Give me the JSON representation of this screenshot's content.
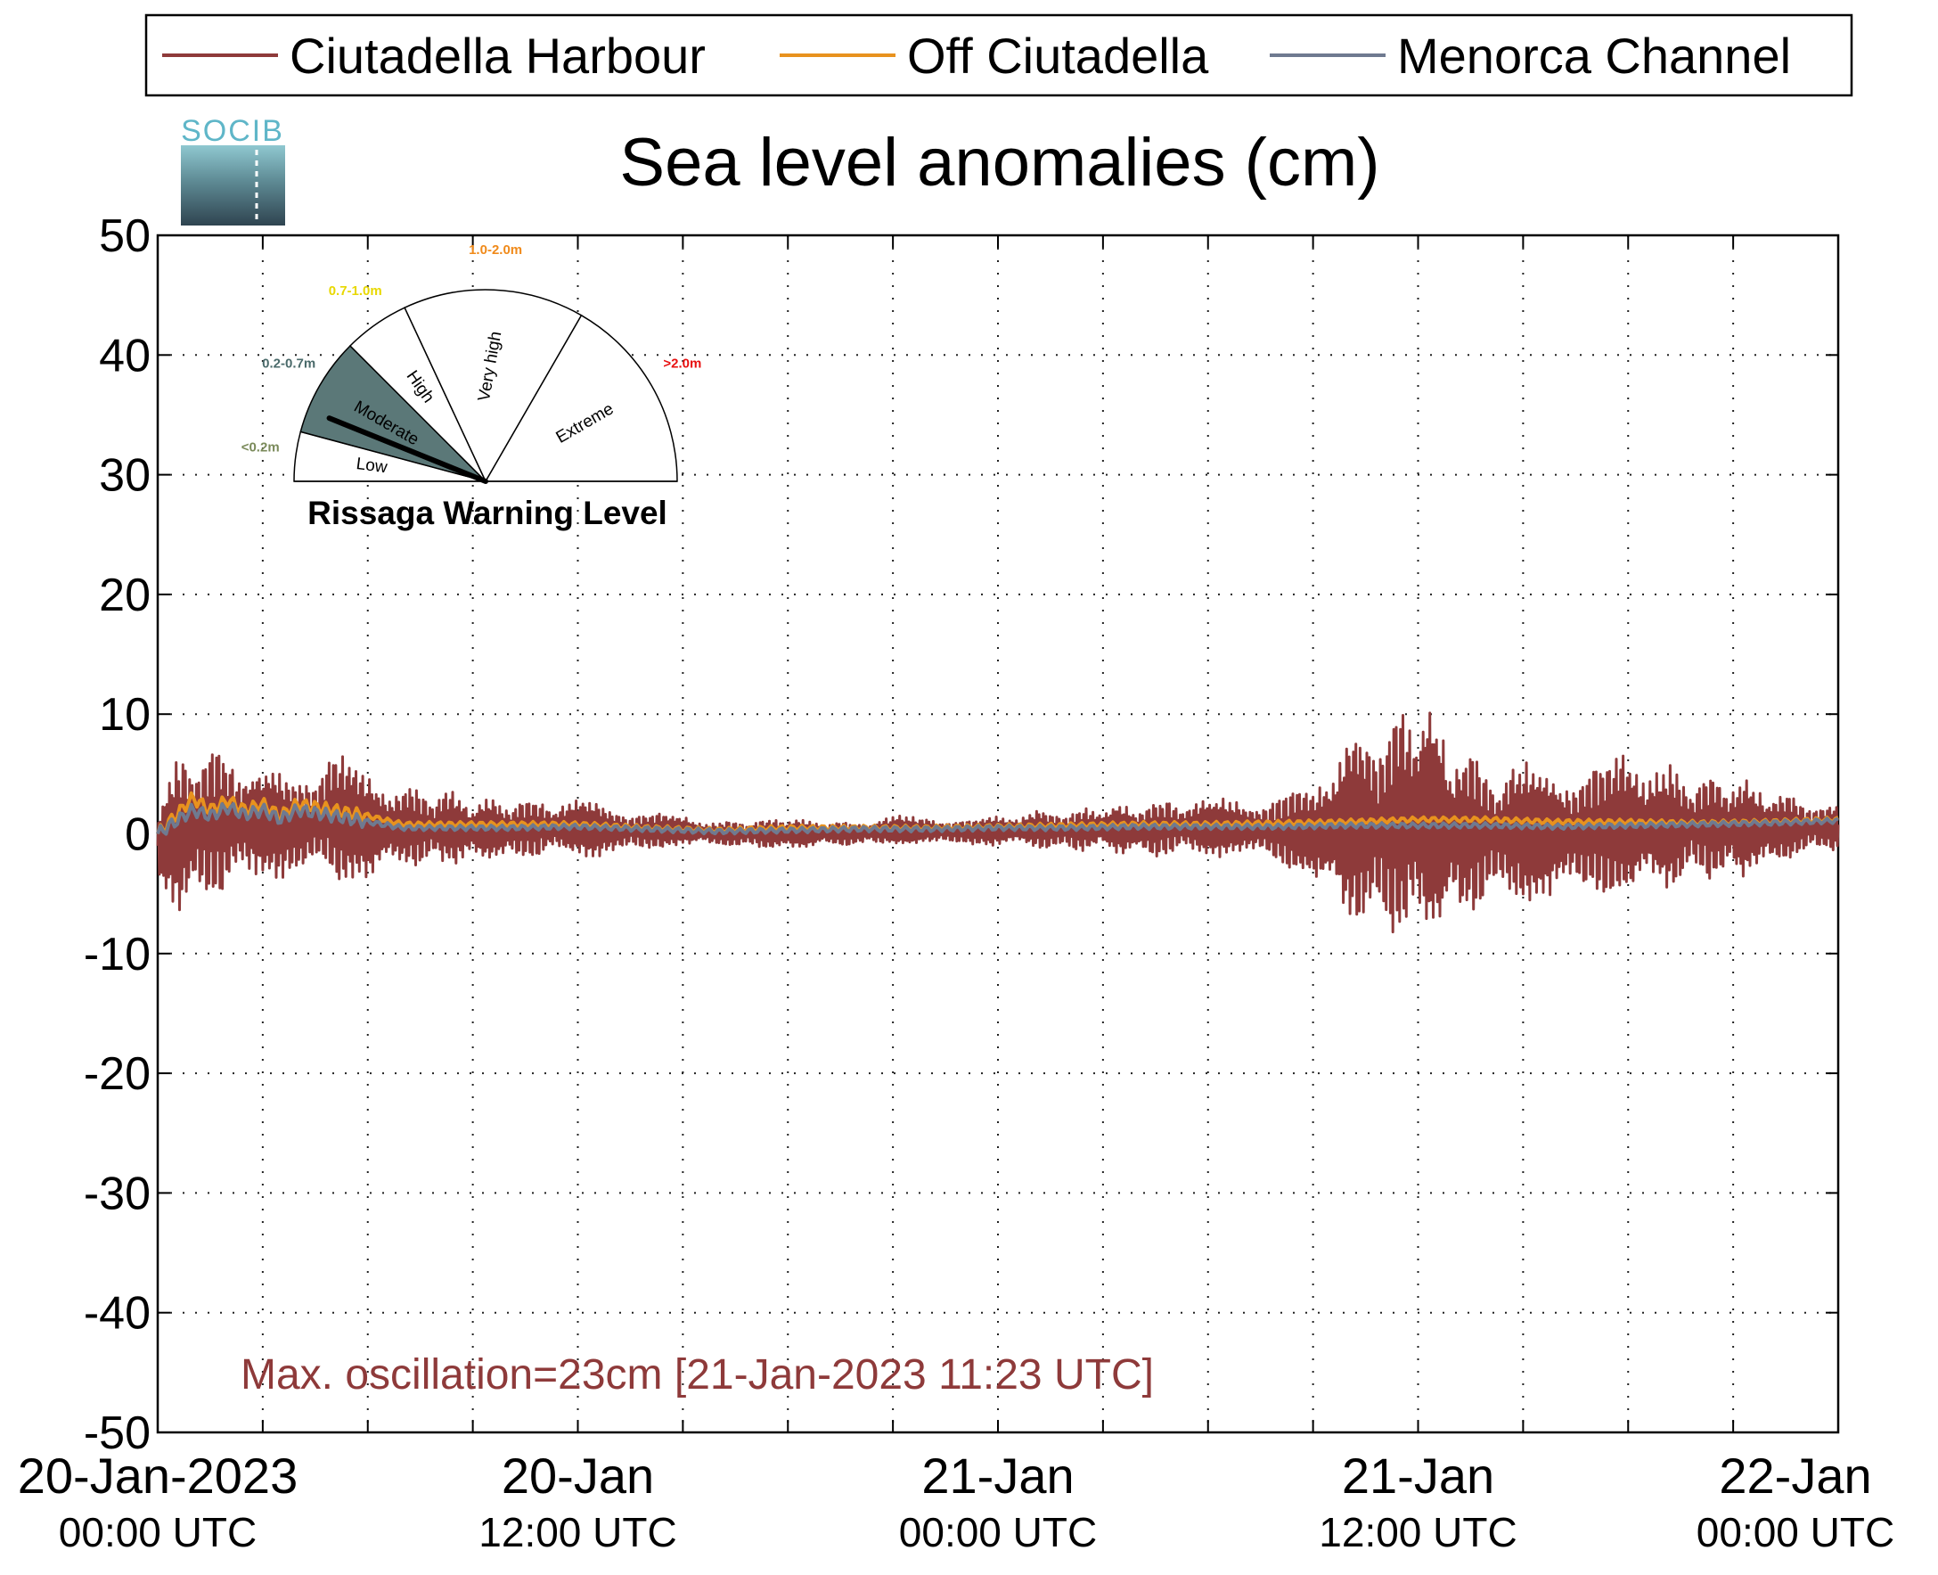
{
  "chart_data": {
    "type": "line",
    "title": "Sea level anomalies (cm)",
    "ylim": [
      -50,
      50
    ],
    "yticks": [
      50,
      40,
      30,
      20,
      10,
      0,
      -10,
      -20,
      -30,
      -40,
      -50
    ],
    "xlim": [
      "2023-01-20 00:00",
      "2023-01-22 00:00"
    ],
    "x_tick_labels": [
      {
        "date": "2023-01-20 00:00",
        "line1": "20-Jan-2023",
        "line2": "00:00 UTC"
      },
      {
        "date": "2023-01-20 12:00",
        "line1": "20-Jan",
        "line2": "12:00 UTC"
      },
      {
        "date": "2023-01-21 00:00",
        "line1": "21-Jan",
        "line2": "00:00 UTC"
      },
      {
        "date": "2023-01-21 12:00",
        "line1": "21-Jan",
        "line2": "12:00 UTC"
      },
      {
        "date": "2023-01-22 00:00",
        "line1": "22-Jan",
        "line2": "00:00 UTC"
      }
    ],
    "grid": true,
    "legend_position": "top",
    "series": [
      {
        "name": "Ciutadella Harbour",
        "color": "#8e3a3a",
        "data_hours": [
          0,
          1,
          2,
          3,
          4,
          5,
          6,
          7,
          8,
          9,
          10,
          11,
          12,
          13,
          14,
          15,
          16,
          17,
          18,
          19,
          20,
          21,
          22,
          23,
          24,
          25,
          26,
          27,
          28,
          29,
          30,
          31,
          32,
          33,
          34,
          35,
          36,
          37,
          38,
          39,
          40,
          41,
          42,
          43,
          44,
          45,
          46,
          47,
          48
        ],
        "upper_envelope_cm": [
          4,
          8,
          7,
          6,
          5,
          8,
          5,
          4,
          4,
          3,
          3,
          3,
          3,
          2.5,
          2,
          1.5,
          1,
          1.2,
          1.5,
          1,
          1,
          1.5,
          1.5,
          1.2,
          1.5,
          2,
          2,
          2.5,
          2.5,
          3,
          3,
          3,
          3.5,
          4,
          9,
          10,
          12.5,
          8,
          6,
          6.5,
          6,
          6.5,
          7,
          6,
          5,
          5,
          4,
          3,
          2.5
        ],
        "lower_envelope_cm": [
          -6,
          -7,
          -5,
          -4,
          -4,
          -5,
          -4,
          -3,
          -3,
          -2.5,
          -2.5,
          -2,
          -2,
          -2,
          -1.5,
          -1,
          -1,
          -1.2,
          -1.5,
          -1,
          -1,
          -1,
          -1,
          -1,
          -1,
          -1.2,
          -1.5,
          -1.5,
          -2,
          -2,
          -2,
          -2,
          -3,
          -4,
          -8,
          -9,
          -10,
          -8,
          -6,
          -6,
          -6,
          -6,
          -6,
          -5,
          -4,
          -4,
          -3,
          -2,
          -1.5
        ]
      },
      {
        "name": "Off Ciutadella",
        "color": "#e8921e",
        "data_hours": [
          0,
          0.5,
          1,
          1.5,
          2,
          2.5,
          3,
          3.5,
          4,
          5,
          6,
          7,
          8,
          10,
          12,
          14,
          16,
          18,
          20,
          22,
          24,
          26,
          28,
          30,
          32,
          34,
          36,
          38,
          40,
          42,
          44,
          46,
          48
        ],
        "values_cm": [
          0,
          1.5,
          3,
          2,
          2.8,
          2,
          2.5,
          1.5,
          2.5,
          2,
          1.5,
          0.8,
          0.8,
          0.8,
          0.8,
          0.5,
          0.3,
          0.5,
          0.5,
          0.5,
          0.6,
          0.7,
          0.8,
          0.8,
          0.9,
          1.0,
          1.2,
          1.2,
          1.0,
          1.0,
          0.9,
          1.0,
          1.2
        ]
      },
      {
        "name": "Menorca Channel",
        "color": "#6f7a90",
        "data_hours": [
          0,
          0.5,
          1,
          1.5,
          2,
          2.5,
          3,
          3.5,
          4,
          5,
          6,
          7,
          8,
          10,
          12,
          14,
          16,
          18,
          20,
          22,
          24,
          26,
          28,
          30,
          32,
          34,
          36,
          38,
          40,
          42,
          44,
          46,
          48
        ],
        "values_cm": [
          0,
          1.0,
          2.0,
          1.5,
          2.2,
          1.6,
          2.0,
          1.2,
          2.0,
          1.5,
          1.0,
          0.5,
          0.5,
          0.5,
          0.6,
          0.4,
          0.2,
          0.3,
          0.4,
          0.4,
          0.5,
          0.5,
          0.6,
          0.6,
          0.6,
          0.7,
          0.7,
          0.7,
          0.6,
          0.7,
          0.8,
          0.9,
          1.1
        ]
      }
    ],
    "annotation": "Max. oscillation=23cm [21-Jan-2023 11:23 UTC]",
    "annotation_color": "#8e3a3a"
  },
  "logo": {
    "text": "SOCIB"
  },
  "gauge": {
    "title": "Rissaga Warning Level",
    "current_level": "Moderate",
    "sectors": [
      {
        "label": "Low",
        "range": "<0.2m",
        "color": "#ffffff",
        "range_color": "#7a8a5a"
      },
      {
        "label": "Moderate",
        "range": "0.2-0.7m",
        "color": "#5b7878",
        "range_color": "#4a6a6a"
      },
      {
        "label": "High",
        "range": "0.7-1.0m",
        "color": "#ffffff",
        "range_color": "#e8d800"
      },
      {
        "label": "Very high",
        "range": "1.0-2.0m",
        "color": "#ffffff",
        "range_color": "#f08a1a"
      },
      {
        "label": "Extreme",
        "range": ">2.0m",
        "color": "#ffffff",
        "range_color": "#e81010"
      }
    ]
  }
}
